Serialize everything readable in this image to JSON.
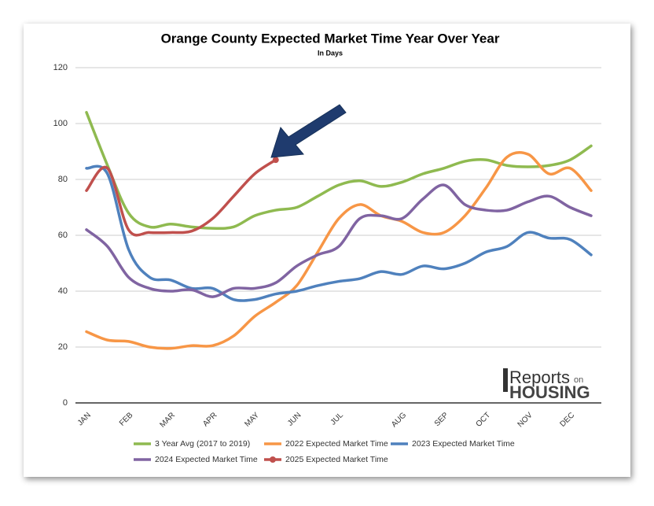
{
  "chart_data": {
    "type": "line",
    "title": "Orange County Expected Market Time Year Over Year",
    "subtitle": "In Days",
    "logo": {
      "line1": "Reports",
      "line1b": "on",
      "line2": "HOUSING"
    },
    "categories": [
      "JAN",
      null,
      "FEB",
      null,
      "MAR",
      null,
      "APR",
      null,
      "MAY",
      null,
      "JUN",
      null,
      "JUL",
      null,
      null,
      "AUG",
      null,
      "SEP",
      null,
      "OCT",
      null,
      "NOV",
      null,
      "DEC",
      null
    ],
    "series": [
      {
        "name": "3 Year Avg (2017 to 2019)",
        "color": "#8fba50",
        "values": [
          104,
          85,
          68,
          63,
          64,
          63,
          62.5,
          63,
          67,
          69,
          70,
          74,
          78,
          79.5,
          77.5,
          79,
          82,
          84,
          86.5,
          87,
          85,
          84.5,
          85,
          87,
          92
        ]
      },
      {
        "name": "2022 Expected Market Time",
        "color": "#f79646",
        "values": [
          25.5,
          22.5,
          22,
          20,
          19.5,
          20.5,
          20.5,
          24,
          31,
          36,
          42,
          54,
          66,
          71,
          67,
          65,
          61,
          61,
          67,
          77,
          88,
          89,
          82,
          84,
          76
        ]
      },
      {
        "name": "2023 Expected Market Time",
        "color": "#4f81bd",
        "values": [
          84,
          82,
          55,
          45,
          44,
          41,
          41,
          37,
          37,
          39,
          40,
          42,
          43.5,
          44.5,
          47,
          46,
          49,
          48,
          50,
          54,
          56,
          61,
          59,
          58.5,
          53
        ]
      },
      {
        "name": "2024 Expected Market Time",
        "color": "#8064a2",
        "values": [
          62,
          56,
          45,
          41,
          40,
          40.5,
          38,
          41,
          41,
          43,
          49,
          53,
          56,
          66,
          67,
          66,
          73,
          78,
          71,
          69,
          69,
          72,
          74,
          70,
          67
        ]
      },
      {
        "name": "2025 Expected Market Time",
        "color": "#c0504d",
        "values": [
          76,
          84,
          62,
          61,
          61,
          61.5,
          66,
          74,
          82,
          87,
          null,
          null,
          null,
          null,
          null,
          null,
          null,
          null,
          null,
          null,
          null,
          null,
          null,
          null,
          null
        ]
      }
    ],
    "ylim": [
      0,
      120
    ],
    "yticks": [
      0,
      20,
      40,
      60,
      80,
      100,
      120
    ],
    "grid": true
  }
}
